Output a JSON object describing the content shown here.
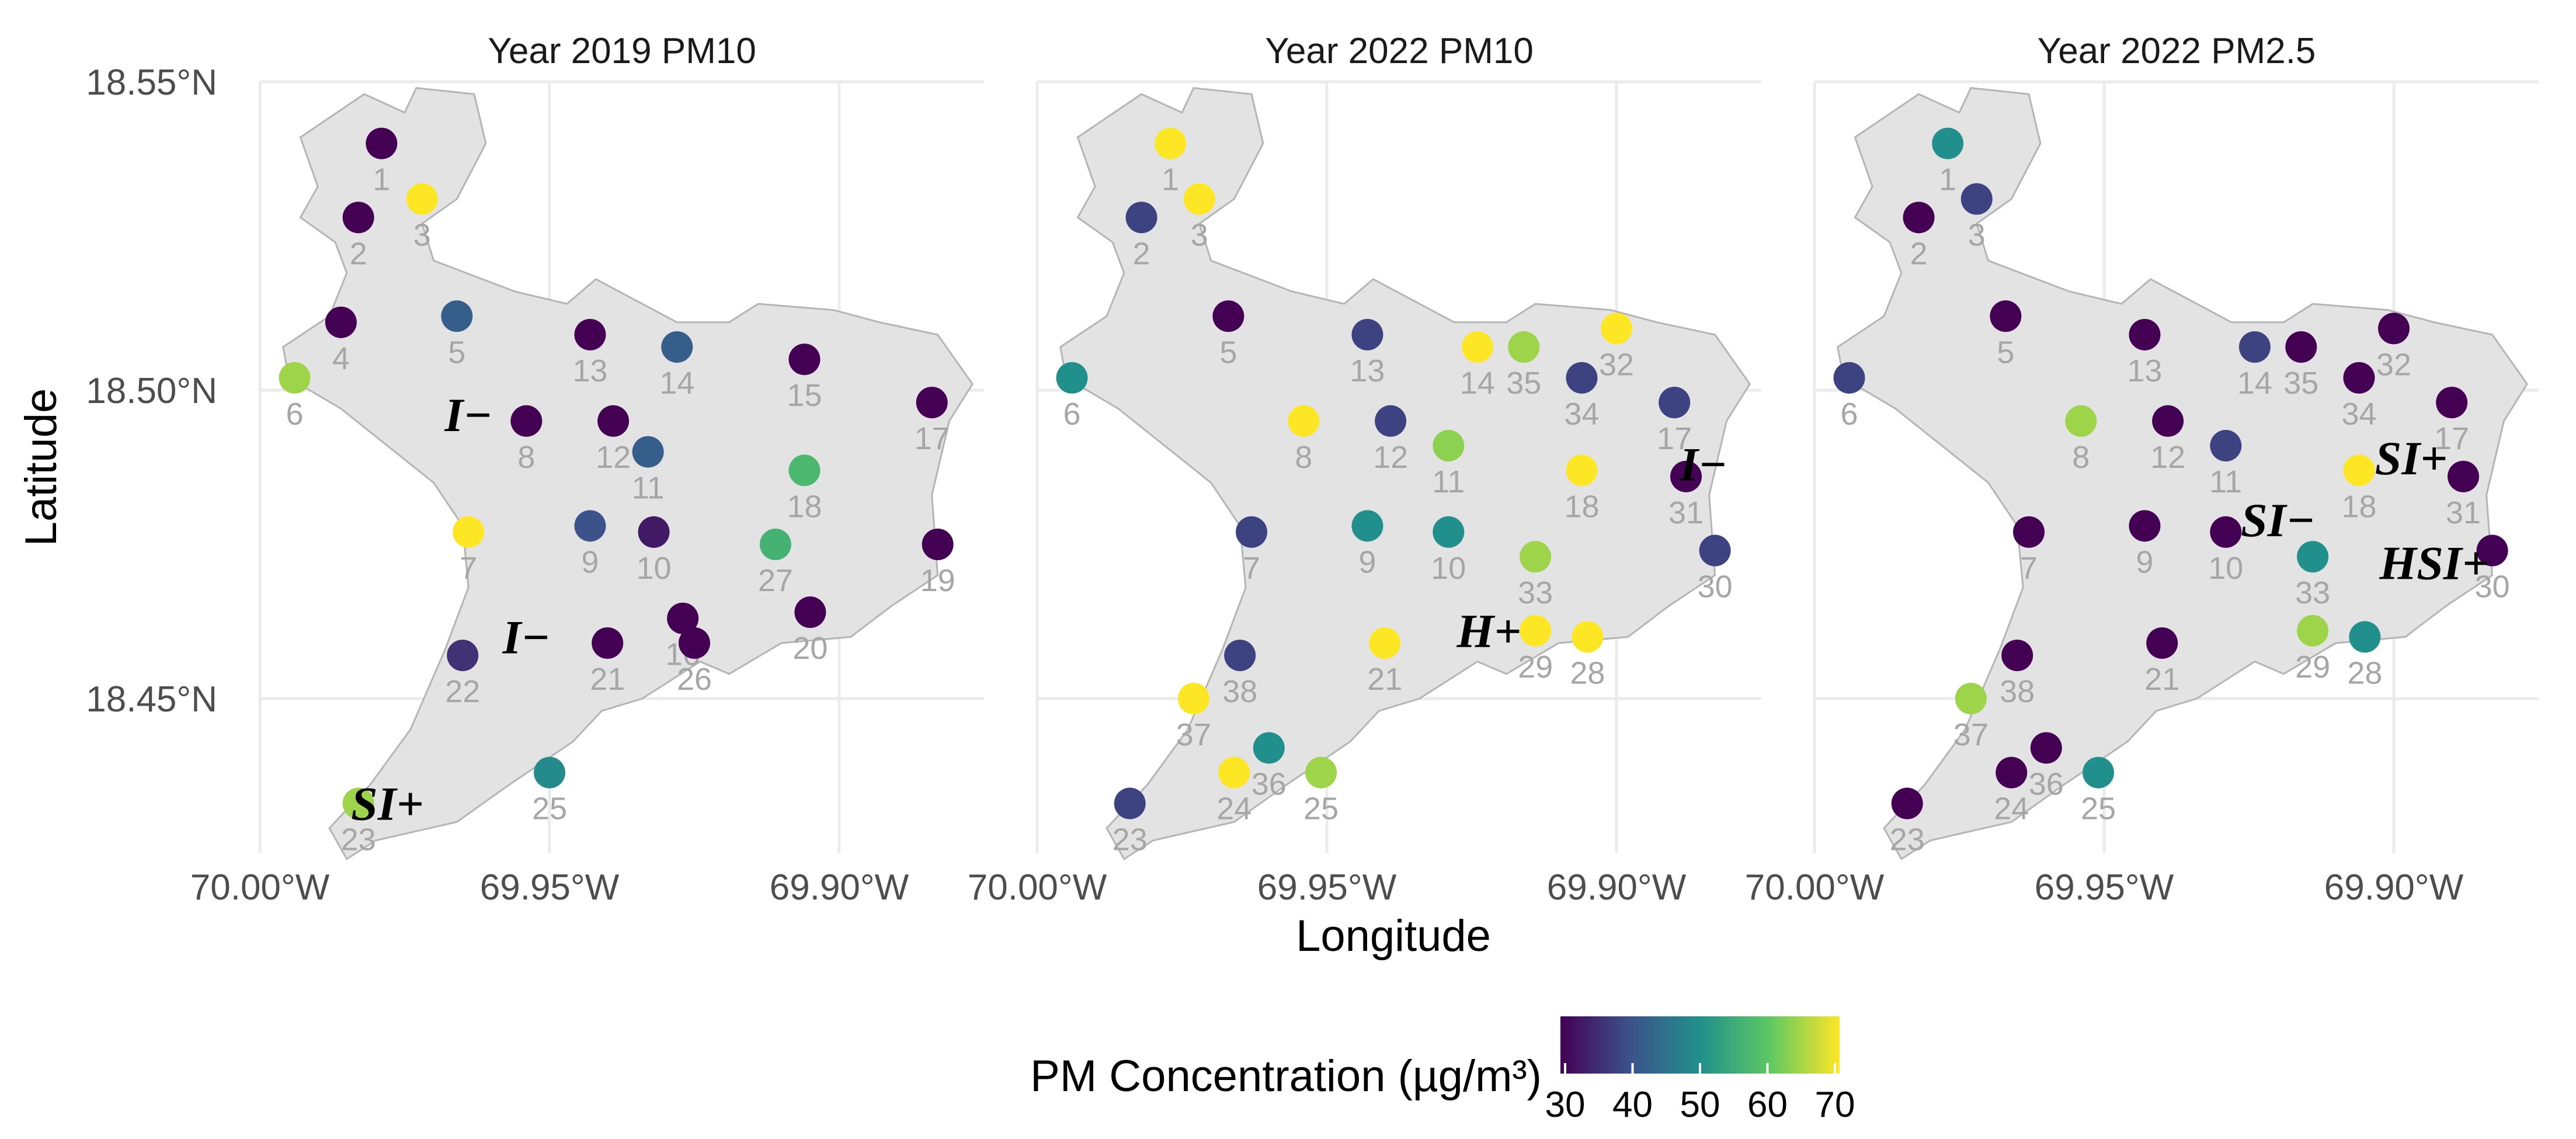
{
  "chart_data": {
    "type": "scatter",
    "xlabel": "Longitude",
    "ylabel": "Latitude",
    "xlim": [
      -70.0,
      -69.875
    ],
    "ylim": [
      18.425,
      18.55
    ],
    "x_ticks": [
      "70.00°W",
      "69.95°W",
      "69.90°W"
    ],
    "y_ticks": [
      "18.55°N",
      "18.50°N",
      "18.45°N"
    ],
    "grid": true,
    "legend": {
      "title": "PM  Concentration (µg/m³)",
      "ticks": [
        "30",
        "40",
        "50",
        "60",
        "70"
      ],
      "range": [
        30,
        70
      ],
      "placement": "bottom",
      "palette": [
        "#440154",
        "#3b528b",
        "#21908c",
        "#5dc863",
        "#fde725"
      ]
    },
    "region_outline": [
      [
        -69.993,
        18.541
      ],
      [
        -69.982,
        18.548
      ],
      [
        -69.975,
        18.545
      ],
      [
        -69.973,
        18.549
      ],
      [
        -69.963,
        18.548
      ],
      [
        -69.961,
        18.54
      ],
      [
        -69.966,
        18.531
      ],
      [
        -69.972,
        18.527
      ],
      [
        -69.97,
        18.521
      ],
      [
        -69.956,
        18.516
      ],
      [
        -69.947,
        18.514
      ],
      [
        -69.942,
        18.518
      ],
      [
        -69.928,
        18.511
      ],
      [
        -69.919,
        18.511
      ],
      [
        -69.914,
        18.514
      ],
      [
        -69.901,
        18.513
      ],
      [
        -69.893,
        18.511
      ],
      [
        -69.883,
        18.509
      ],
      [
        -69.877,
        18.501
      ],
      [
        -69.881,
        18.495
      ],
      [
        -69.884,
        18.483
      ],
      [
        -69.883,
        18.47
      ],
      [
        -69.891,
        18.465
      ],
      [
        -69.898,
        18.46
      ],
      [
        -69.91,
        18.459
      ],
      [
        -69.919,
        18.454
      ],
      [
        -69.924,
        18.456
      ],
      [
        -69.934,
        18.45
      ],
      [
        -69.941,
        18.448
      ],
      [
        -69.946,
        18.443
      ],
      [
        -69.957,
        18.436
      ],
      [
        -69.966,
        18.43
      ],
      [
        -69.98,
        18.427
      ],
      [
        -69.985,
        18.424
      ],
      [
        -69.988,
        18.429
      ],
      [
        -69.981,
        18.436
      ],
      [
        -69.974,
        18.445
      ],
      [
        -69.968,
        18.458
      ],
      [
        -69.964,
        18.468
      ],
      [
        -69.965,
        18.478
      ],
      [
        -69.97,
        18.485
      ],
      [
        -69.978,
        18.491
      ],
      [
        -69.986,
        18.497
      ],
      [
        -69.995,
        18.502
      ],
      [
        -69.996,
        18.507
      ],
      [
        -69.988,
        18.512
      ],
      [
        -69.985,
        18.519
      ],
      [
        -69.987,
        18.524
      ],
      [
        -69.993,
        18.528
      ],
      [
        -69.99,
        18.533
      ]
    ],
    "panels": [
      {
        "title": "Year 2019 PM10",
        "points": [
          {
            "id": "1",
            "lon": -69.979,
            "lat": 18.54,
            "pm": 30
          },
          {
            "id": "2",
            "lon": -69.983,
            "lat": 18.528,
            "pm": 30
          },
          {
            "id": "3",
            "lon": -69.972,
            "lat": 18.531,
            "pm": 70
          },
          {
            "id": "4",
            "lon": -69.986,
            "lat": 18.511,
            "pm": 30
          },
          {
            "id": "5",
            "lon": -69.966,
            "lat": 18.512,
            "pm": 42
          },
          {
            "id": "6",
            "lon": -69.994,
            "lat": 18.502,
            "pm": 64
          },
          {
            "id": "7",
            "lon": -69.964,
            "lat": 18.477,
            "pm": 70
          },
          {
            "id": "8",
            "lon": -69.954,
            "lat": 18.495,
            "pm": 30
          },
          {
            "id": "9",
            "lon": -69.943,
            "lat": 18.478,
            "pm": 40
          },
          {
            "id": "10",
            "lon": -69.932,
            "lat": 18.477,
            "pm": 33
          },
          {
            "id": "11",
            "lon": -69.933,
            "lat": 18.49,
            "pm": 42
          },
          {
            "id": "12",
            "lon": -69.939,
            "lat": 18.495,
            "pm": 30
          },
          {
            "id": "13",
            "lon": -69.943,
            "lat": 18.509,
            "pm": 30
          },
          {
            "id": "14",
            "lon": -69.928,
            "lat": 18.507,
            "pm": 42
          },
          {
            "id": "15",
            "lon": -69.906,
            "lat": 18.505,
            "pm": 30
          },
          {
            "id": "16",
            "lon": -69.927,
            "lat": 18.463,
            "pm": 30
          },
          {
            "id": "17",
            "lon": -69.884,
            "lat": 18.498,
            "pm": 30
          },
          {
            "id": "18",
            "lon": -69.906,
            "lat": 18.487,
            "pm": 57
          },
          {
            "id": "19",
            "lon": -69.883,
            "lat": 18.475,
            "pm": 30
          },
          {
            "id": "20",
            "lon": -69.905,
            "lat": 18.464,
            "pm": 30
          },
          {
            "id": "21",
            "lon": -69.94,
            "lat": 18.459,
            "pm": 30
          },
          {
            "id": "22",
            "lon": -69.965,
            "lat": 18.457,
            "pm": 36
          },
          {
            "id": "23",
            "lon": -69.983,
            "lat": 18.433,
            "pm": 64
          },
          {
            "id": "25",
            "lon": -69.95,
            "lat": 18.438,
            "pm": 49
          },
          {
            "id": "26",
            "lon": -69.925,
            "lat": 18.459,
            "pm": 30
          },
          {
            "id": "27",
            "lon": -69.911,
            "lat": 18.475,
            "pm": 56
          }
        ],
        "annotations": [
          {
            "text": "I−",
            "lon": -69.964,
            "lat": 18.496
          },
          {
            "text": "I−",
            "lon": -69.954,
            "lat": 18.46
          },
          {
            "text": "SI+",
            "lon": -69.978,
            "lat": 18.433
          }
        ]
      },
      {
        "title": "Year 2022 PM10",
        "points": [
          {
            "id": "1",
            "lon": -69.977,
            "lat": 18.54,
            "pm": 70
          },
          {
            "id": "2",
            "lon": -69.982,
            "lat": 18.528,
            "pm": 38
          },
          {
            "id": "3",
            "lon": -69.972,
            "lat": 18.531,
            "pm": 70
          },
          {
            "id": "5",
            "lon": -69.967,
            "lat": 18.512,
            "pm": 30
          },
          {
            "id": "6",
            "lon": -69.994,
            "lat": 18.502,
            "pm": 50
          },
          {
            "id": "7",
            "lon": -69.963,
            "lat": 18.477,
            "pm": 38
          },
          {
            "id": "8",
            "lon": -69.954,
            "lat": 18.495,
            "pm": 70
          },
          {
            "id": "9",
            "lon": -69.943,
            "lat": 18.478,
            "pm": 50
          },
          {
            "id": "10",
            "lon": -69.929,
            "lat": 18.477,
            "pm": 50
          },
          {
            "id": "11",
            "lon": -69.929,
            "lat": 18.491,
            "pm": 63
          },
          {
            "id": "12",
            "lon": -69.939,
            "lat": 18.495,
            "pm": 38
          },
          {
            "id": "13",
            "lon": -69.943,
            "lat": 18.509,
            "pm": 38
          },
          {
            "id": "14",
            "lon": -69.924,
            "lat": 18.507,
            "pm": 70
          },
          {
            "id": "35",
            "lon": -69.916,
            "lat": 18.507,
            "pm": 64
          },
          {
            "id": "32",
            "lon": -69.9,
            "lat": 18.51,
            "pm": 70
          },
          {
            "id": "34",
            "lon": -69.906,
            "lat": 18.502,
            "pm": 38
          },
          {
            "id": "17",
            "lon": -69.89,
            "lat": 18.498,
            "pm": 38
          },
          {
            "id": "18",
            "lon": -69.906,
            "lat": 18.487,
            "pm": 70
          },
          {
            "id": "31",
            "lon": -69.888,
            "lat": 18.486,
            "pm": 30
          },
          {
            "id": "33",
            "lon": -69.914,
            "lat": 18.473,
            "pm": 64
          },
          {
            "id": "30",
            "lon": -69.883,
            "lat": 18.474,
            "pm": 38
          },
          {
            "id": "29",
            "lon": -69.914,
            "lat": 18.461,
            "pm": 70
          },
          {
            "id": "28",
            "lon": -69.905,
            "lat": 18.46,
            "pm": 70
          },
          {
            "id": "21",
            "lon": -69.94,
            "lat": 18.459,
            "pm": 70
          },
          {
            "id": "38",
            "lon": -69.965,
            "lat": 18.457,
            "pm": 38
          },
          {
            "id": "37",
            "lon": -69.973,
            "lat": 18.45,
            "pm": 70
          },
          {
            "id": "36",
            "lon": -69.96,
            "lat": 18.442,
            "pm": 50
          },
          {
            "id": "24",
            "lon": -69.966,
            "lat": 18.438,
            "pm": 70
          },
          {
            "id": "25",
            "lon": -69.951,
            "lat": 18.438,
            "pm": 64
          },
          {
            "id": "23",
            "lon": -69.984,
            "lat": 18.433,
            "pm": 38
          }
        ],
        "annotations": [
          {
            "text": "I−",
            "lon": -69.885,
            "lat": 18.488
          },
          {
            "text": "H+",
            "lon": -69.922,
            "lat": 18.461
          }
        ]
      },
      {
        "title": "Year 2022 PM2.5",
        "points": [
          {
            "id": "1",
            "lon": -69.977,
            "lat": 18.54,
            "pm": 50
          },
          {
            "id": "2",
            "lon": -69.982,
            "lat": 18.528,
            "pm": 30
          },
          {
            "id": "3",
            "lon": -69.972,
            "lat": 18.531,
            "pm": 38
          },
          {
            "id": "5",
            "lon": -69.967,
            "lat": 18.512,
            "pm": 30
          },
          {
            "id": "6",
            "lon": -69.994,
            "lat": 18.502,
            "pm": 38
          },
          {
            "id": "7",
            "lon": -69.963,
            "lat": 18.477,
            "pm": 30
          },
          {
            "id": "8",
            "lon": -69.954,
            "lat": 18.495,
            "pm": 64
          },
          {
            "id": "9",
            "lon": -69.943,
            "lat": 18.478,
            "pm": 30
          },
          {
            "id": "10",
            "lon": -69.929,
            "lat": 18.477,
            "pm": 30
          },
          {
            "id": "11",
            "lon": -69.929,
            "lat": 18.491,
            "pm": 38
          },
          {
            "id": "12",
            "lon": -69.939,
            "lat": 18.495,
            "pm": 30
          },
          {
            "id": "13",
            "lon": -69.943,
            "lat": 18.509,
            "pm": 30
          },
          {
            "id": "14",
            "lon": -69.924,
            "lat": 18.507,
            "pm": 38
          },
          {
            "id": "35",
            "lon": -69.916,
            "lat": 18.507,
            "pm": 30
          },
          {
            "id": "32",
            "lon": -69.9,
            "lat": 18.51,
            "pm": 30
          },
          {
            "id": "34",
            "lon": -69.906,
            "lat": 18.502,
            "pm": 30
          },
          {
            "id": "17",
            "lon": -69.89,
            "lat": 18.498,
            "pm": 30
          },
          {
            "id": "18",
            "lon": -69.906,
            "lat": 18.487,
            "pm": 70
          },
          {
            "id": "31",
            "lon": -69.888,
            "lat": 18.486,
            "pm": 30
          },
          {
            "id": "33",
            "lon": -69.914,
            "lat": 18.473,
            "pm": 50
          },
          {
            "id": "30",
            "lon": -69.883,
            "lat": 18.474,
            "pm": 30
          },
          {
            "id": "29",
            "lon": -69.914,
            "lat": 18.461,
            "pm": 64
          },
          {
            "id": "28",
            "lon": -69.905,
            "lat": 18.46,
            "pm": 50
          },
          {
            "id": "21",
            "lon": -69.94,
            "lat": 18.459,
            "pm": 30
          },
          {
            "id": "38",
            "lon": -69.965,
            "lat": 18.457,
            "pm": 30
          },
          {
            "id": "37",
            "lon": -69.973,
            "lat": 18.45,
            "pm": 64
          },
          {
            "id": "36",
            "lon": -69.96,
            "lat": 18.442,
            "pm": 30
          },
          {
            "id": "24",
            "lon": -69.966,
            "lat": 18.438,
            "pm": 30
          },
          {
            "id": "25",
            "lon": -69.951,
            "lat": 18.438,
            "pm": 50
          },
          {
            "id": "23",
            "lon": -69.984,
            "lat": 18.433,
            "pm": 30
          }
        ],
        "annotations": [
          {
            "text": "SI+",
            "lon": -69.897,
            "lat": 18.489
          },
          {
            "text": "SI−",
            "lon": -69.92,
            "lat": 18.479
          },
          {
            "text": "HSI+",
            "lon": -69.893,
            "lat": 18.472
          }
        ]
      }
    ]
  }
}
